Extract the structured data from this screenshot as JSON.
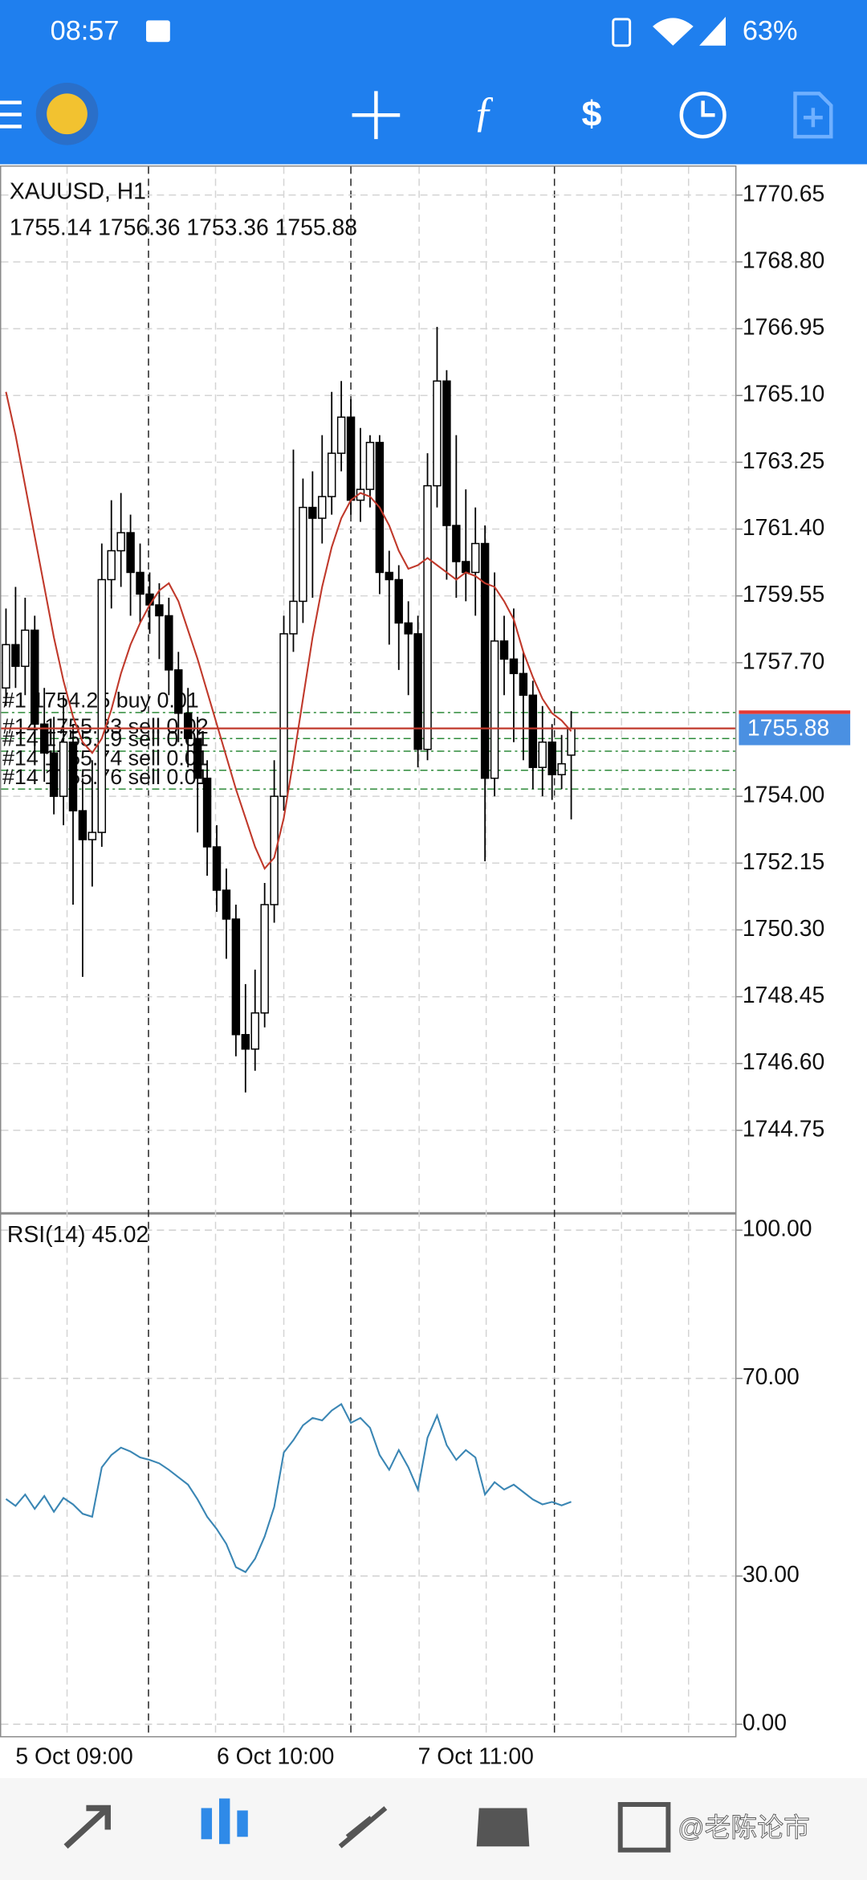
{
  "status_bar": {
    "time": "08:57",
    "battery": "63%"
  },
  "chart": {
    "type": "candlestick",
    "symbol": "XAUUSD, H1",
    "ohlc": "1755.14 1756.36 1753.36 1755.88",
    "categories": [
      null,
      "5 Oct 09:00",
      null,
      null,
      null,
      null,
      null,
      null,
      null,
      null,
      null,
      null,
      null,
      null,
      null,
      null,
      null,
      null,
      null,
      null,
      null,
      null,
      "6 Oct 10:00",
      null,
      null,
      null,
      null,
      null,
      null,
      null,
      null,
      null,
      null,
      null,
      null,
      null,
      null,
      null,
      null,
      null,
      null,
      null,
      null,
      "7 Oct 11:00",
      null,
      null,
      null,
      null,
      null,
      null,
      null,
      null,
      null,
      null,
      null,
      null,
      null,
      null,
      null,
      null
    ],
    "open": [
      1757.0,
      1758.2,
      1757.6,
      1758.6,
      1756.0,
      1755.2,
      1754.0,
      1755.5,
      1753.6,
      1752.8,
      1753.0,
      1760.0,
      1760.8,
      1761.3,
      1760.2,
      1759.6,
      1759.3,
      1759.0,
      1757.5,
      1756.3,
      1755.6,
      1754.5,
      1752.6,
      1751.4,
      1750.6,
      1747.4,
      1747.0,
      1748.0,
      1751.0,
      1754.0,
      1758.5,
      1759.4,
      1762.0,
      1761.7,
      1762.3,
      1763.5,
      1764.5,
      1762.2,
      1762.5,
      1763.8,
      1760.2,
      1760.0,
      1758.8,
      1758.5,
      1755.3,
      1762.6,
      1765.5,
      1761.5,
      1760.5,
      1760.2,
      1761.0,
      1754.5,
      1758.3,
      1757.8,
      1757.4,
      1756.8,
      1754.8,
      1755.5,
      1754.6,
      1755.14
    ],
    "high": [
      1759.2,
      1759.8,
      1759.5,
      1759.0,
      1757.0,
      1756.2,
      1756.8,
      1756.0,
      1754.5,
      1755.0,
      1761.0,
      1762.2,
      1762.4,
      1761.8,
      1761.0,
      1760.2,
      1759.9,
      1759.5,
      1758.0,
      1757.0,
      1756.2,
      1755.0,
      1753.2,
      1752.0,
      1751.0,
      1748.8,
      1749.2,
      1751.6,
      1755.0,
      1759.0,
      1763.6,
      1762.8,
      1763.0,
      1764.0,
      1765.2,
      1765.5,
      1765.0,
      1764.2,
      1764.0,
      1764.0,
      1760.8,
      1760.4,
      1759.4,
      1759.0,
      1763.5,
      1767.0,
      1765.8,
      1764.0,
      1762.5,
      1762.0,
      1761.5,
      1760.2,
      1759.0,
      1759.2,
      1758.0,
      1757.2,
      1756.5,
      1756.0,
      1755.7,
      1756.36
    ],
    "low": [
      1756.5,
      1757.0,
      1756.8,
      1755.2,
      1754.4,
      1753.5,
      1753.2,
      1751.0,
      1749.0,
      1751.5,
      1752.6,
      1759.2,
      1759.8,
      1759.0,
      1758.8,
      1758.5,
      1757.8,
      1756.8,
      1755.5,
      1754.8,
      1753.0,
      1751.8,
      1750.8,
      1749.5,
      1746.8,
      1745.8,
      1746.4,
      1747.6,
      1750.5,
      1753.6,
      1758.0,
      1758.8,
      1759.5,
      1761.0,
      1761.8,
      1763.0,
      1761.8,
      1761.6,
      1762.0,
      1759.6,
      1758.2,
      1757.5,
      1756.8,
      1754.8,
      1755.0,
      1762.0,
      1760.0,
      1759.5,
      1759.4,
      1759.0,
      1752.2,
      1754.0,
      1756.8,
      1755.5,
      1755.0,
      1754.2,
      1754.0,
      1753.9,
      1754.2,
      1753.36
    ],
    "close": [
      1758.2,
      1757.6,
      1758.6,
      1756.0,
      1755.2,
      1754.0,
      1755.5,
      1753.6,
      1752.8,
      1753.0,
      1760.0,
      1760.8,
      1761.3,
      1760.2,
      1759.6,
      1759.3,
      1759.0,
      1757.5,
      1756.3,
      1755.6,
      1754.5,
      1752.6,
      1751.4,
      1750.6,
      1747.4,
      1747.0,
      1748.0,
      1751.0,
      1754.0,
      1758.5,
      1759.4,
      1762.0,
      1761.7,
      1762.3,
      1763.5,
      1764.5,
      1762.2,
      1762.5,
      1763.8,
      1760.2,
      1760.0,
      1758.8,
      1758.5,
      1755.3,
      1762.6,
      1765.5,
      1761.5,
      1760.5,
      1760.2,
      1761.0,
      1754.5,
      1758.3,
      1757.8,
      1757.4,
      1756.8,
      1754.8,
      1755.5,
      1754.6,
      1754.9,
      1755.88
    ],
    "ma": {
      "color": "#c0392b",
      "values": [
        1765.2,
        1764.0,
        1762.6,
        1761.2,
        1759.8,
        1758.4,
        1757.2,
        1756.2,
        1755.5,
        1755.2,
        1755.6,
        1756.4,
        1757.4,
        1758.2,
        1758.8,
        1759.3,
        1759.7,
        1759.9,
        1759.4,
        1758.6,
        1757.8,
        1756.9,
        1756.0,
        1755.1,
        1754.2,
        1753.4,
        1752.6,
        1752.0,
        1752.3,
        1753.4,
        1755.0,
        1756.7,
        1758.4,
        1759.8,
        1760.9,
        1761.7,
        1762.2,
        1762.4,
        1762.3,
        1762.0,
        1761.5,
        1760.8,
        1760.3,
        1760.4,
        1760.6,
        1760.4,
        1760.2,
        1760.0,
        1760.2,
        1760.1,
        1759.9,
        1759.8,
        1759.4,
        1758.9,
        1758.0,
        1757.3,
        1756.7,
        1756.3,
        1756.1,
        1755.8
      ]
    },
    "ylim": [
      1742.45,
      1771.47
    ],
    "yticks": [
      1770.65,
      {
        "value": 1768.8,
        "label": "1768.80"
      },
      1766.95,
      {
        "value": 1765.1,
        "label": "1765.10"
      },
      1763.25,
      {
        "value": 1761.4,
        "label": "1761.40"
      },
      1759.55,
      {
        "value": 1757.7,
        "label": "1757.70"
      },
      {
        "value": 1754,
        "label": "1754.00"
      },
      1752.15,
      {
        "value": 1750.3,
        "label": "1750.30"
      },
      1748.45,
      {
        "value": 1746.6,
        "label": "1746.60"
      },
      1744.75
    ],
    "current_price": 1755.88,
    "orders": [
      {
        "label": "#1 1754.25 buy 0.01",
        "price": 1756.32
      },
      {
        "label": "#14 1755.83 sell 0.02",
        "price": 1755.6
      },
      {
        "label": "#14 1755.19 sell 0.01",
        "price": 1755.25
      },
      {
        "label": "#14 1755.74 sell 0.01",
        "price": 1754.72
      },
      {
        "label": "#14 1755.76 sell 0.01",
        "price": 1754.2
      }
    ]
  },
  "rsi": {
    "type": "line",
    "label": "RSI(14) 45.02",
    "color": "#3a86b4",
    "values": [
      45.6,
      44.2,
      46.5,
      43.6,
      46.2,
      43.0,
      45.8,
      44.5,
      42.6,
      42.0,
      52.0,
      54.5,
      56.0,
      55.2,
      54.0,
      53.5,
      52.8,
      51.5,
      50.0,
      48.5,
      45.5,
      42.0,
      39.5,
      36.5,
      31.8,
      30.8,
      33.5,
      38.0,
      44.0,
      55.0,
      57.5,
      60.5,
      62.0,
      61.5,
      63.5,
      64.8,
      61.0,
      62.0,
      60.0,
      54.5,
      51.5,
      55.5,
      52.0,
      47.5,
      58.0,
      62.5,
      56.5,
      53.5,
      55.5,
      54.0,
      46.5,
      49.0,
      47.5,
      48.5,
      47.0,
      45.5,
      44.5,
      45.0,
      44.3,
      45.02
    ],
    "ylim": [
      -2.4,
      103.4
    ],
    "yticks": [
      {
        "value": 100,
        "label": "100.00"
      },
      {
        "value": 70,
        "label": "70.00"
      },
      {
        "value": 30,
        "label": "30.00"
      },
      {
        "value": 0,
        "label": "0.00"
      }
    ]
  },
  "watermark": "@老陈论市"
}
